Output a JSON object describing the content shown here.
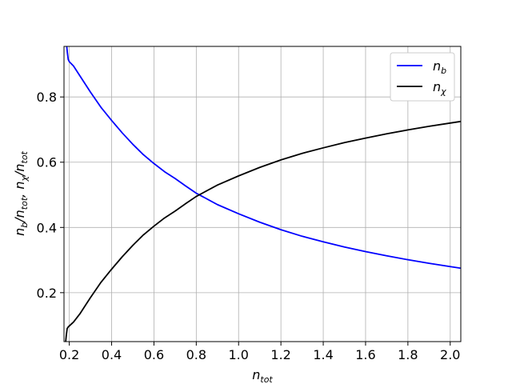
{
  "chart_data": {
    "type": "line",
    "title": "",
    "xlabel": "n_tot",
    "ylabel": "n_b/n_tot, n_χ/n_tot",
    "xlim": [
      0.175,
      2.05
    ],
    "ylim": [
      0.05,
      0.955
    ],
    "xticks": [
      0.2,
      0.4,
      0.6,
      0.8,
      1.0,
      1.2,
      1.4,
      1.6,
      1.8,
      2.0
    ],
    "xtick_labels": [
      "0.2",
      "0.4",
      "0.6",
      "0.8",
      "1.0",
      "1.2",
      "1.4",
      "1.6",
      "1.8",
      "2.0"
    ],
    "yticks": [
      0.2,
      0.4,
      0.6,
      0.8
    ],
    "ytick_labels": [
      "0.2",
      "0.4",
      "0.6",
      "0.8"
    ],
    "grid": true,
    "legend_position": "top-right",
    "series": [
      {
        "name": "n_b",
        "color": "#0000ff",
        "x": [
          0.188,
          0.191,
          0.195,
          0.2,
          0.22,
          0.25,
          0.3,
          0.35,
          0.4,
          0.45,
          0.5,
          0.55,
          0.6,
          0.65,
          0.7,
          0.75,
          0.8,
          0.9,
          1.0,
          1.1,
          1.2,
          1.3,
          1.4,
          1.5,
          1.6,
          1.7,
          1.8,
          1.9,
          2.0,
          2.05
        ],
        "y": [
          0.955,
          0.935,
          0.915,
          0.908,
          0.895,
          0.865,
          0.815,
          0.768,
          0.728,
          0.69,
          0.655,
          0.623,
          0.596,
          0.571,
          0.55,
          0.527,
          0.505,
          0.47,
          0.442,
          0.416,
          0.393,
          0.373,
          0.356,
          0.34,
          0.326,
          0.313,
          0.301,
          0.29,
          0.28,
          0.275
        ]
      },
      {
        "name": "n_χ",
        "color": "#000000",
        "x": [
          0.183,
          0.186,
          0.19,
          0.195,
          0.2,
          0.22,
          0.25,
          0.3,
          0.35,
          0.4,
          0.45,
          0.5,
          0.55,
          0.6,
          0.65,
          0.7,
          0.75,
          0.8,
          0.9,
          1.0,
          1.1,
          1.2,
          1.3,
          1.4,
          1.5,
          1.6,
          1.7,
          1.8,
          1.9,
          2.0,
          2.05
        ],
        "y": [
          0.05,
          0.07,
          0.09,
          0.095,
          0.098,
          0.11,
          0.135,
          0.185,
          0.232,
          0.272,
          0.31,
          0.345,
          0.377,
          0.404,
          0.429,
          0.45,
          0.473,
          0.495,
          0.53,
          0.558,
          0.584,
          0.607,
          0.627,
          0.644,
          0.66,
          0.674,
          0.687,
          0.699,
          0.71,
          0.72,
          0.725
        ]
      }
    ]
  }
}
